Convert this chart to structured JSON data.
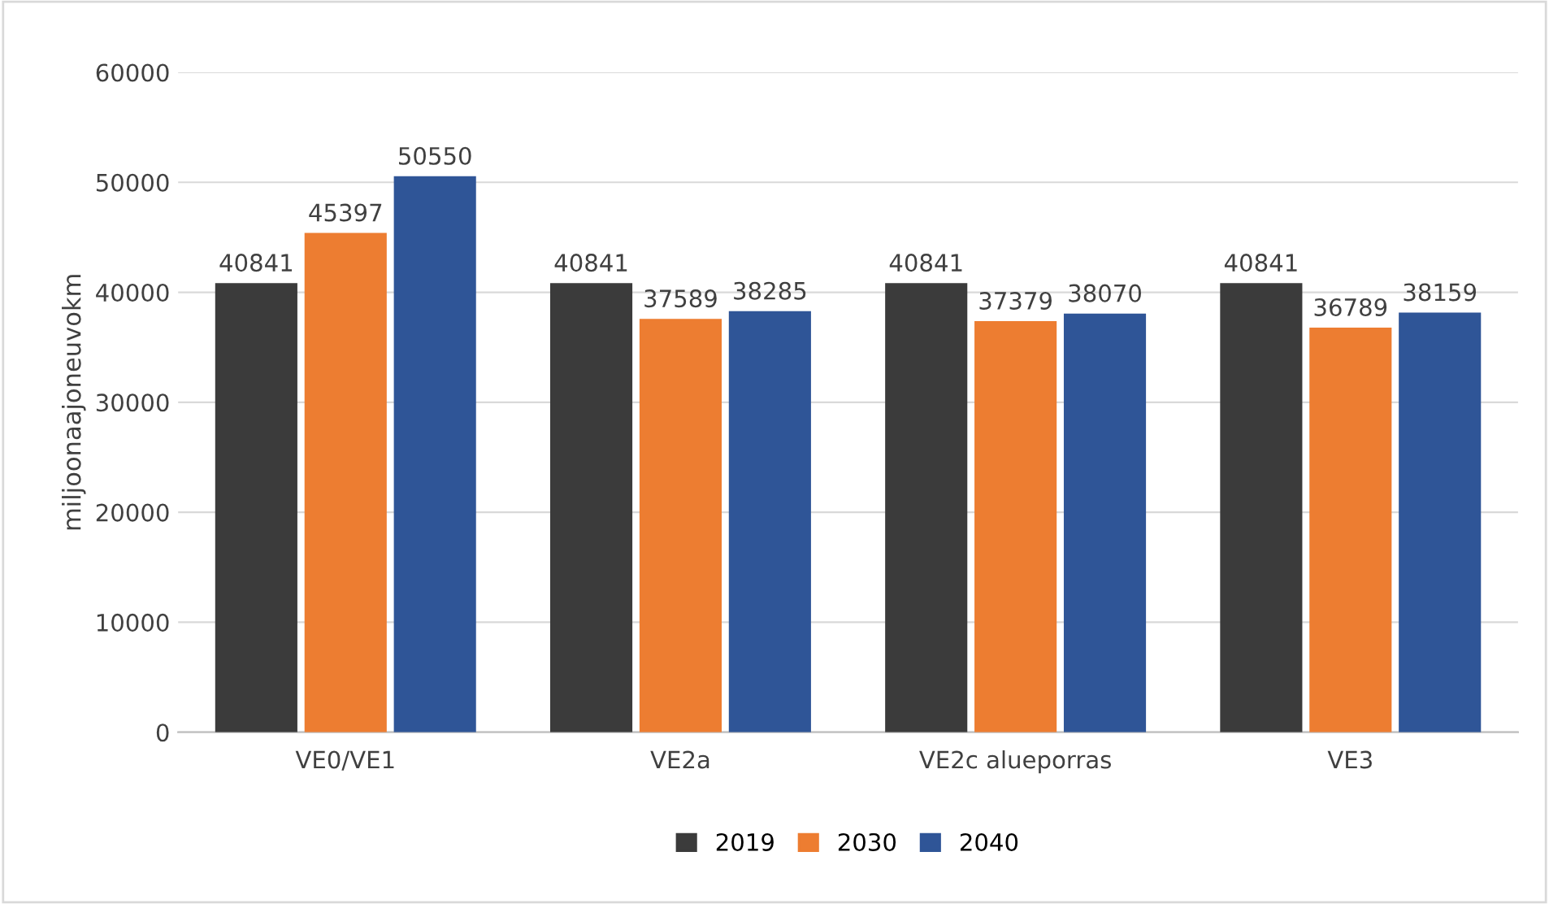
{
  "chart_data": {
    "type": "bar",
    "ylabel": "miljoonaajoneuvokm",
    "categories": [
      "VE0/VE1",
      "VE2a",
      "VE2c alueporras",
      "VE3"
    ],
    "series": [
      {
        "name": "2019",
        "color": "#3b3b3b",
        "values": [
          40841,
          40841,
          40841,
          40841
        ]
      },
      {
        "name": "2030",
        "color": "#ed7d31",
        "values": [
          45397,
          37589,
          37379,
          36789
        ]
      },
      {
        "name": "2040",
        "color": "#2f5597",
        "values": [
          50550,
          38285,
          38070,
          38159
        ]
      }
    ],
    "ylim": [
      0,
      60000
    ],
    "yticks": [
      0,
      10000,
      20000,
      30000,
      40000,
      50000,
      60000
    ],
    "grid": "y",
    "legend": "bottom",
    "data_labels": true
  }
}
